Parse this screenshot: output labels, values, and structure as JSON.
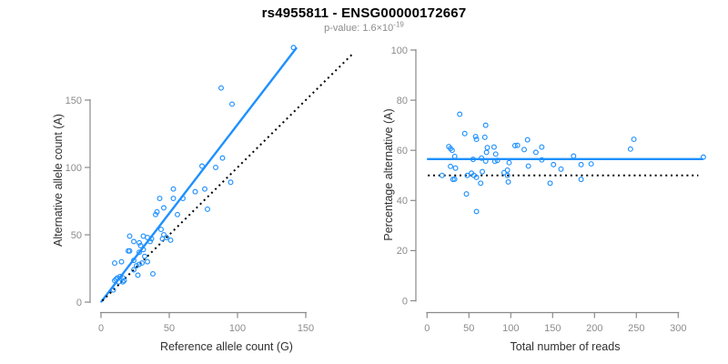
{
  "header": {
    "title": "rs4955811 - ENSG00000172667",
    "pvalue_label": "p-value: ",
    "pvalue_base": "1.6×10",
    "pvalue_exponent": "-19"
  },
  "colors": {
    "accent_blue": "#1e90ff",
    "axis_line_gray": "#8a8a8a",
    "tick_label_gray": "#8c8c8c",
    "axis_title_dark": "#303030",
    "identity_line_black": "#000000"
  },
  "chart_data": [
    {
      "type": "scatter",
      "panel": "left",
      "xlabel": "Reference allele count (G)",
      "ylabel": "Alternative allele count (A)",
      "xticks": [
        0,
        50,
        100,
        150
      ],
      "yticks": [
        0,
        50,
        100,
        150
      ],
      "xlim": [
        0,
        186
      ],
      "ylim": [
        0,
        190
      ],
      "grid": false,
      "marker": "open-circle",
      "points": [
        [
          10,
          29
        ],
        [
          15,
          30
        ],
        [
          20,
          38
        ],
        [
          21,
          38
        ],
        [
          21,
          49
        ],
        [
          24,
          45
        ],
        [
          10,
          16
        ],
        [
          11,
          17
        ],
        [
          12,
          18
        ],
        [
          14,
          19
        ],
        [
          13,
          15
        ],
        [
          16,
          18
        ],
        [
          24,
          31
        ],
        [
          28,
          37
        ],
        [
          31,
          39
        ],
        [
          28,
          44
        ],
        [
          29,
          42
        ],
        [
          31,
          49
        ],
        [
          34,
          48
        ],
        [
          36,
          45
        ],
        [
          37,
          47
        ],
        [
          24,
          24
        ],
        [
          26,
          27
        ],
        [
          28,
          28
        ],
        [
          30,
          29
        ],
        [
          32,
          34
        ],
        [
          16,
          15
        ],
        [
          17,
          16
        ],
        [
          9,
          9
        ],
        [
          34,
          30
        ],
        [
          27,
          20
        ],
        [
          46,
          50
        ],
        [
          51,
          46
        ],
        [
          40,
          65
        ],
        [
          41,
          67
        ],
        [
          44,
          54
        ],
        [
          45,
          47
        ],
        [
          43,
          77
        ],
        [
          46,
          70
        ],
        [
          53,
          84
        ],
        [
          53,
          77
        ],
        [
          60,
          77
        ],
        [
          56,
          65
        ],
        [
          69,
          82
        ],
        [
          76,
          84
        ],
        [
          78,
          69
        ],
        [
          48,
          48
        ],
        [
          74,
          101
        ],
        [
          84,
          100
        ],
        [
          89,
          107
        ],
        [
          95,
          89
        ],
        [
          96,
          147
        ],
        [
          88,
          159
        ],
        [
          141,
          189
        ],
        [
          38,
          21
        ]
      ],
      "lines": [
        {
          "name": "regression-line",
          "style": "solid",
          "color": "#1e90ff",
          "x1": 0.3,
          "y1": 0.4,
          "x2": 143,
          "y2": 188.5
        },
        {
          "name": "identity-line",
          "style": "dotted",
          "color": "#000000",
          "x1": 1,
          "y1": 1,
          "x2": 185,
          "y2": 185
        }
      ]
    },
    {
      "type": "scatter",
      "panel": "right",
      "xlabel": "Total number of reads",
      "ylabel": "Percentage alternative (A)",
      "xticks": [
        0,
        50,
        100,
        150,
        200,
        250,
        300
      ],
      "yticks": [
        0,
        20,
        40,
        60,
        80,
        100
      ],
      "xlim": [
        0,
        332
      ],
      "ylim": [
        0,
        104
      ],
      "grid": false,
      "marker": "open-circle",
      "points": [
        [
          39,
          74.4
        ],
        [
          45,
          66.7
        ],
        [
          58,
          65.5
        ],
        [
          59,
          64.4
        ],
        [
          70,
          70.0
        ],
        [
          69,
          65.2
        ],
        [
          26,
          61.5
        ],
        [
          28,
          60.7
        ],
        [
          30,
          60.0
        ],
        [
          33,
          57.6
        ],
        [
          28,
          53.6
        ],
        [
          34,
          52.9
        ],
        [
          55,
          56.4
        ],
        [
          65,
          56.9
        ],
        [
          70,
          55.7
        ],
        [
          72,
          61.1
        ],
        [
          71,
          59.2
        ],
        [
          80,
          61.3
        ],
        [
          82,
          58.5
        ],
        [
          81,
          55.6
        ],
        [
          84,
          56.0
        ],
        [
          48,
          50.0
        ],
        [
          53,
          50.9
        ],
        [
          56,
          50.0
        ],
        [
          59,
          49.2
        ],
        [
          66,
          51.5
        ],
        [
          31,
          48.4
        ],
        [
          33,
          48.5
        ],
        [
          18,
          50.0
        ],
        [
          64,
          46.9
        ],
        [
          47,
          42.6
        ],
        [
          96,
          52.1
        ],
        [
          97,
          47.4
        ],
        [
          105,
          61.9
        ],
        [
          108,
          62.0
        ],
        [
          98,
          55.1
        ],
        [
          92,
          51.1
        ],
        [
          120,
          64.2
        ],
        [
          116,
          60.3
        ],
        [
          137,
          61.3
        ],
        [
          130,
          59.2
        ],
        [
          137,
          56.2
        ],
        [
          121,
          53.7
        ],
        [
          151,
          54.3
        ],
        [
          160,
          52.5
        ],
        [
          147,
          46.9
        ],
        [
          96,
          50.0
        ],
        [
          175,
          57.7
        ],
        [
          184,
          54.3
        ],
        [
          196,
          54.6
        ],
        [
          184,
          48.4
        ],
        [
          243,
          60.5
        ],
        [
          247,
          64.4
        ],
        [
          330,
          57.3
        ],
        [
          59,
          35.6
        ]
      ],
      "lines": [
        {
          "name": "mean-percentage-line",
          "style": "solid",
          "color": "#1e90ff",
          "x1": 1,
          "y1": 56.5,
          "x2": 329,
          "y2": 56.5
        },
        {
          "name": "fifty-percent-line",
          "style": "dotted",
          "color": "#000000",
          "x1": 1,
          "y1": 50,
          "x2": 324,
          "y2": 50
        }
      ]
    }
  ]
}
